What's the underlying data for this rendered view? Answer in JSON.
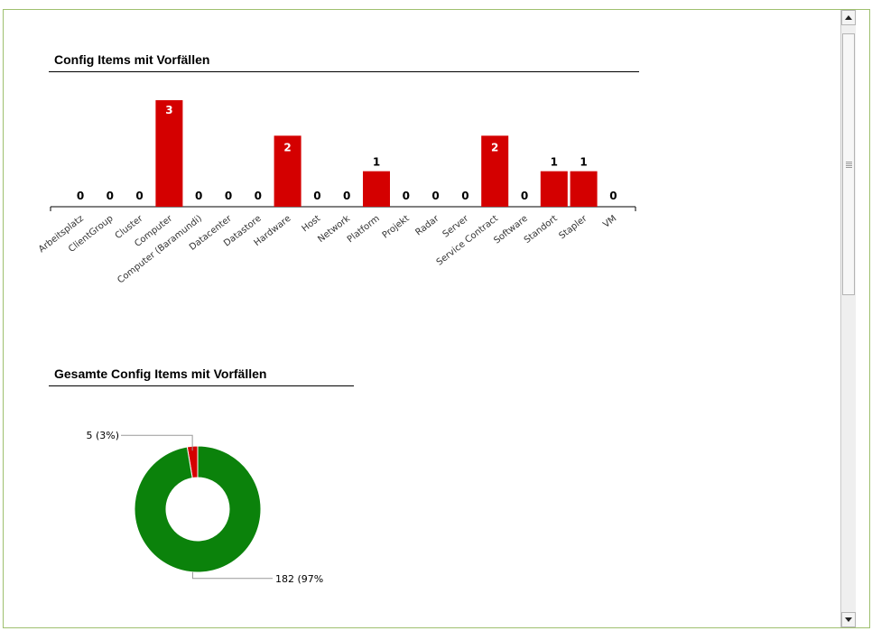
{
  "charts_section": {
    "bar_title": "Config Items mit Vorfällen",
    "pie_title": "Gesamte Config Items mit Vorfällen"
  },
  "chart_data": [
    {
      "type": "bar",
      "title": "Config Items mit Vorfällen",
      "categories": [
        "Arbeitsplatz",
        "ClientGroup",
        "Cluster",
        "Computer",
        "Computer (Baramundi)",
        "Datacenter",
        "Datastore",
        "Hardware",
        "Host",
        "Network",
        "Platform",
        "Projekt",
        "Radar",
        "Server",
        "Service Contract",
        "Software",
        "Standort",
        "Stapler",
        "VM"
      ],
      "values": [
        0,
        0,
        0,
        3,
        0,
        0,
        0,
        2,
        0,
        0,
        1,
        0,
        0,
        0,
        2,
        0,
        1,
        1,
        0
      ],
      "bar_color": "#d40000",
      "ylim": [
        0,
        3
      ]
    },
    {
      "type": "pie",
      "title": "Gesamte Config Items mit Vorfällen",
      "donut": true,
      "slices": [
        {
          "value": 5,
          "label": "5 (3%)",
          "color": "#d40000"
        },
        {
          "value": 182,
          "label": "182 (97%",
          "color": "#0b820b"
        }
      ]
    }
  ]
}
